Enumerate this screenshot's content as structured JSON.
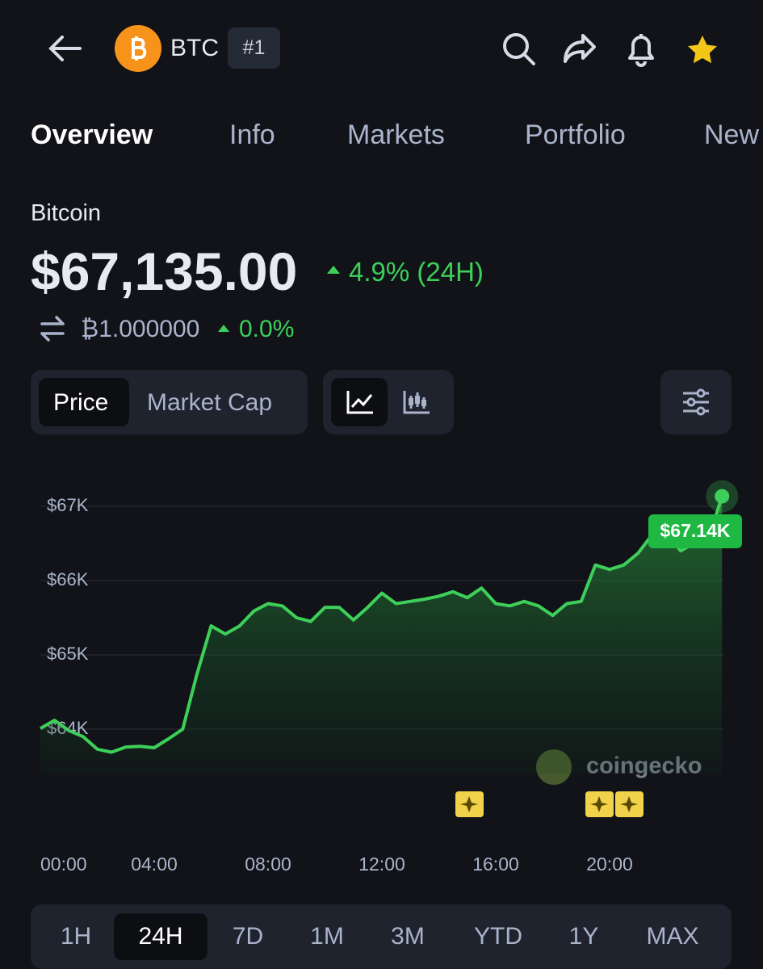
{
  "header": {
    "symbol": "BTC",
    "rank": "#1"
  },
  "tabs": [
    "Overview",
    "Info",
    "Markets",
    "Portfolio",
    "New"
  ],
  "coin": {
    "name": "Bitcoin",
    "price": "$67,135.00",
    "change": "4.9% (24H)",
    "btc_price": "₿1.000000",
    "btc_change": "0.0%"
  },
  "toggles": [
    "Price",
    "Market Cap"
  ],
  "chart_data": {
    "type": "line",
    "x": [
      0,
      0.5,
      1,
      1.5,
      2,
      2.5,
      3,
      3.5,
      4,
      4.5,
      5,
      5.5,
      6,
      6.5,
      7,
      7.5,
      8,
      8.5,
      9,
      9.5,
      10,
      10.5,
      11,
      11.5,
      12,
      12.5,
      13,
      13.5,
      14,
      14.5,
      15,
      15.5,
      16,
      16.5,
      17,
      17.5,
      18,
      18.5,
      19,
      19.5,
      20,
      20.5,
      21,
      21.5,
      22,
      22.5,
      23,
      23.5,
      23.95
    ],
    "series": [
      {
        "color": "#3ecf5a",
        "values": [
          64010,
          64120,
          63980,
          63900,
          63730,
          63690,
          63760,
          63770,
          63750,
          63870,
          64000,
          64740,
          65390,
          65280,
          65390,
          65590,
          65690,
          65660,
          65500,
          65450,
          65640,
          65640,
          65470,
          65640,
          65830,
          65690,
          65720,
          65750,
          65790,
          65850,
          65770,
          65900,
          65690,
          65660,
          65720,
          65660,
          65530,
          65690,
          65720,
          66210,
          66150,
          66210,
          66370,
          66620,
          66640,
          66400,
          66510,
          66590,
          67135
        ]
      }
    ],
    "xlim": [
      0,
      24
    ],
    "ylim": [
      63400,
      67300
    ],
    "yticks": [
      {
        "value": 64000,
        "label": "$64K"
      },
      {
        "value": 65000,
        "label": "$65K"
      },
      {
        "value": 66000,
        "label": "$66K"
      },
      {
        "value": 67000,
        "label": "$67K"
      }
    ],
    "xticks": [
      {
        "value": 0,
        "label": "00:00"
      },
      {
        "value": 4,
        "label": "04:00"
      },
      {
        "value": 8,
        "label": "08:00"
      },
      {
        "value": 12,
        "label": "12:00"
      },
      {
        "value": 16,
        "label": "16:00"
      },
      {
        "value": 20,
        "label": "20:00"
      }
    ],
    "grid": true,
    "last_label": "$67.14K",
    "watermark": "coingecko"
  },
  "ranges": [
    "1H",
    "24H",
    "7D",
    "1M",
    "3M",
    "YTD",
    "1Y",
    "MAX"
  ]
}
